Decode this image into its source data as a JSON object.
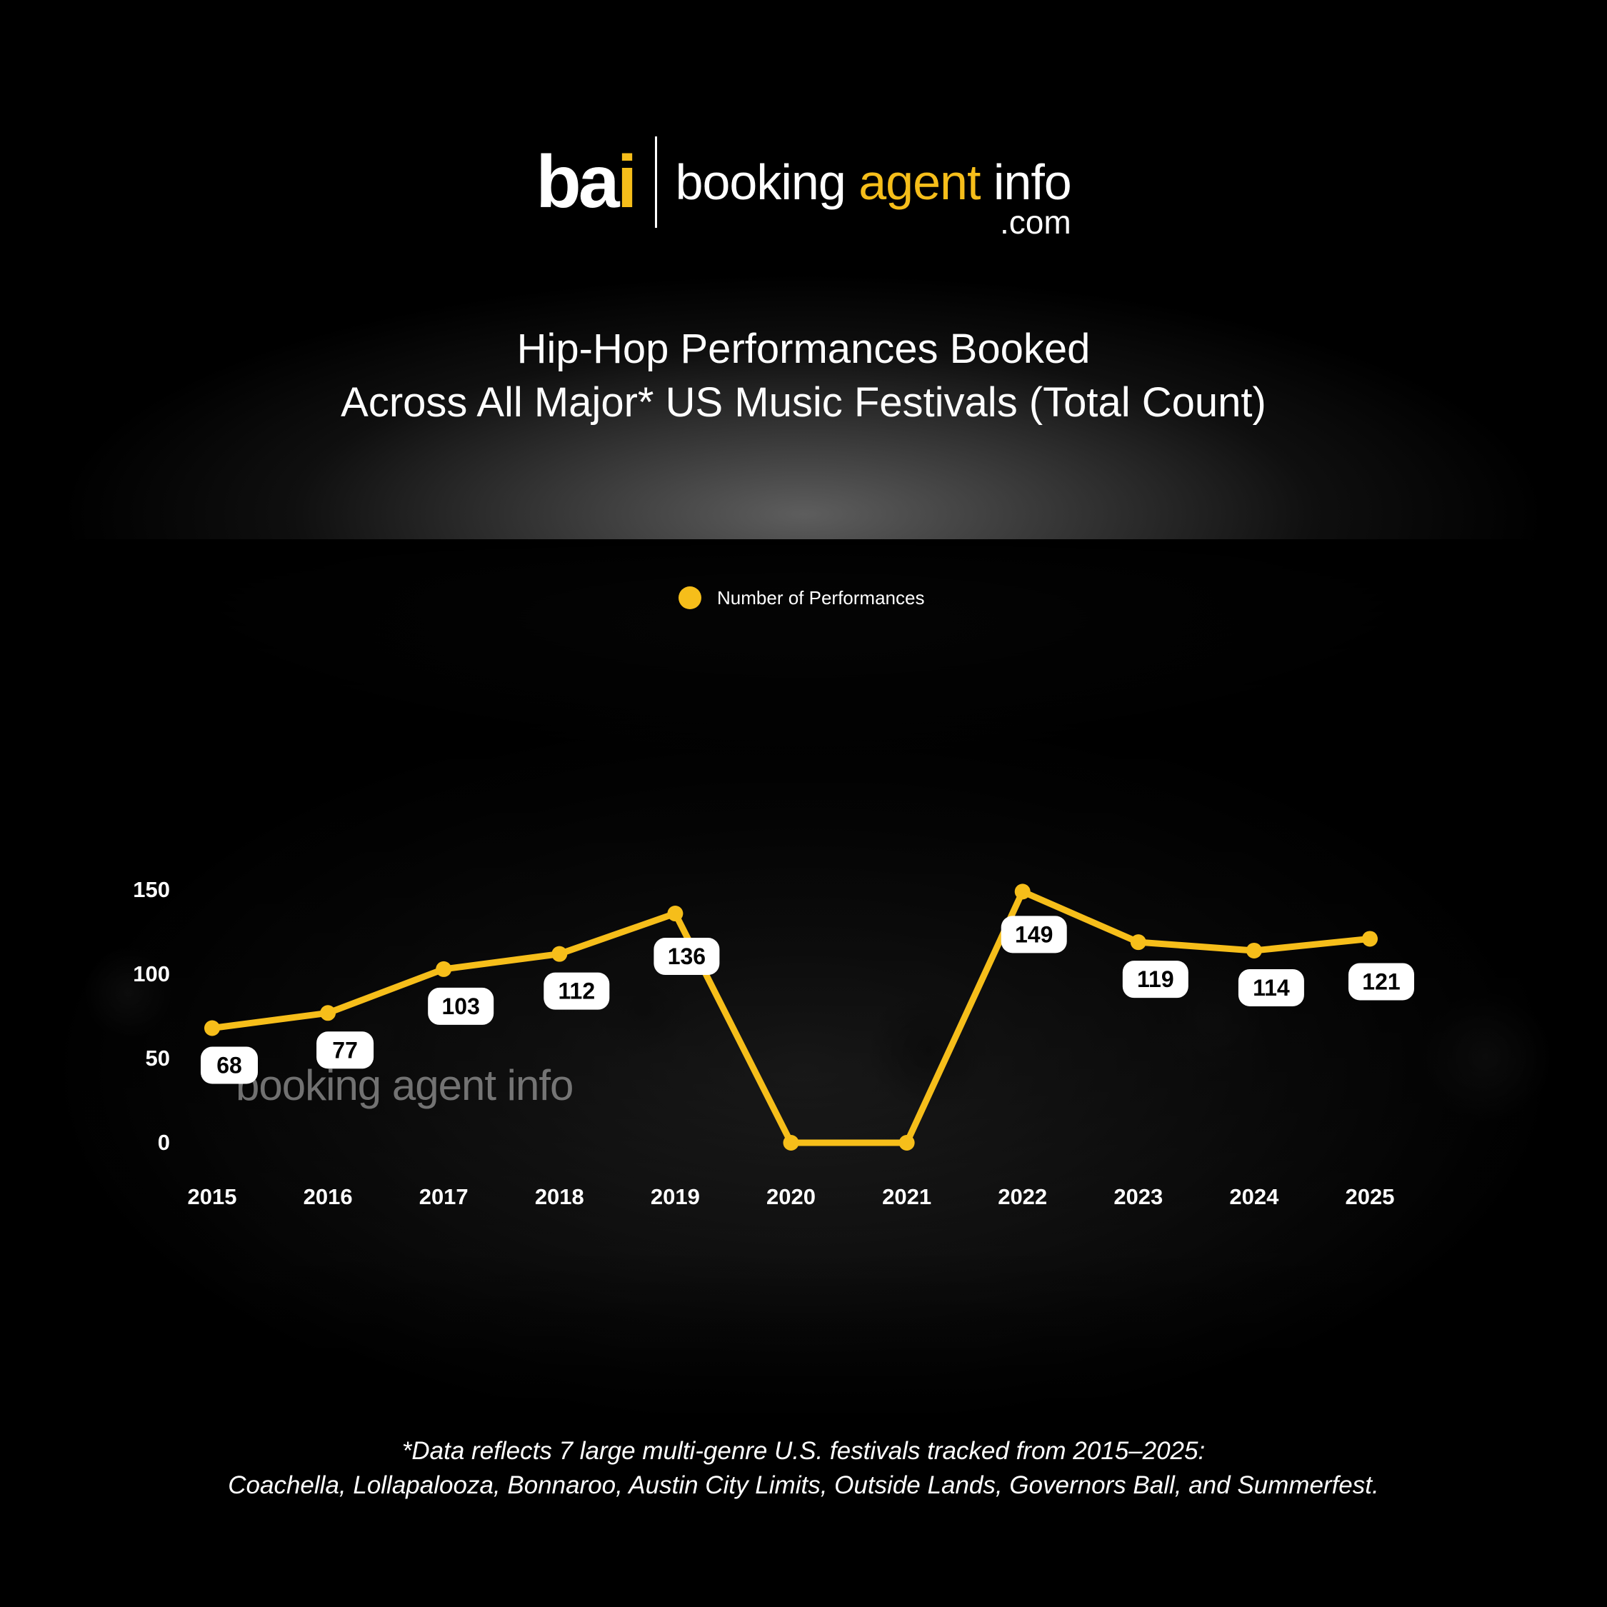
{
  "header": {
    "logo_mark": "ba",
    "logo_mark_i": "i",
    "logo_word_main": "booking ",
    "logo_word_accent": "agent",
    "logo_word_end": " info",
    "logo_word_com": ".com"
  },
  "title_line1": "Hip-Hop Performances Booked",
  "title_line2": "Across All Major* US Music Festivals (Total Count)",
  "watermark": "booking agent info",
  "footnote_line1": "*Data reflects 7 large multi-genre U.S. festivals tracked from 2015–2025:",
  "footnote_line2": "Coachella, Lollapalooza, Bonnaroo, Austin City Limits, Outside Lands, Governors Ball, and Summerfest.",
  "colors": {
    "accent": "#f6be1a",
    "background": "#000000",
    "label_bg": "#ffffff",
    "label_text": "#000000"
  },
  "chart_data": {
    "type": "line",
    "title": "Hip-Hop Performances Booked Across All Major* US Music Festivals (Total Count)",
    "categories": [
      "2015",
      "2016",
      "2017",
      "2018",
      "2019",
      "2020",
      "2021",
      "2022",
      "2023",
      "2024",
      "2025"
    ],
    "series": [
      {
        "name": "Number of Performances",
        "values": [
          68,
          77,
          103,
          112,
          136,
          0,
          0,
          149,
          119,
          114,
          121
        ],
        "data_labels": [
          "68",
          "77",
          "103",
          "112",
          "136",
          null,
          null,
          "149",
          "119",
          "114",
          "121"
        ]
      }
    ],
    "yticks": [
      0,
      50,
      100,
      150
    ],
    "ytick_labels": [
      "0",
      "50",
      "100",
      "150"
    ],
    "ylim": [
      0,
      150
    ],
    "grid": false,
    "legend": "top-center"
  }
}
